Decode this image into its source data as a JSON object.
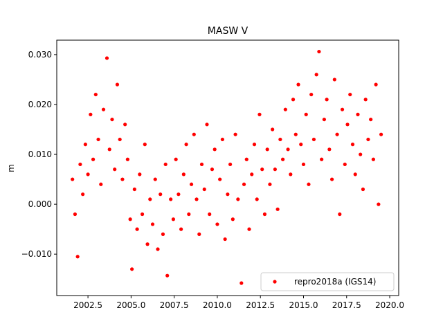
{
  "chart_data": {
    "type": "scatter",
    "title": "MASW V",
    "ylabel": "m",
    "xlim": [
      2000.69,
      2020.52
    ],
    "ylim": [
      -0.0183,
      0.0329
    ],
    "xticks": [
      2002.5,
      {
        "value": 2005,
        "label": "2005.0"
      },
      2007.5,
      {
        "value": 2010,
        "label": "2010.0"
      },
      2012.5,
      {
        "value": 2015,
        "label": "2015.0"
      },
      2017.5,
      {
        "value": 2020,
        "label": "2020.0"
      }
    ],
    "yticks": [
      {
        "value": -0.01,
        "label": "−0.010"
      },
      {
        "value": 0,
        "label": "0.000"
      },
      {
        "value": 0.01,
        "label": "0.010"
      },
      {
        "value": 0.02,
        "label": "0.020"
      },
      {
        "value": 0.03,
        "label": "0.030"
      }
    ],
    "legend_loc": "lower right",
    "series": [
      {
        "name": "repro2018a (IGS14)",
        "color": "#ff0000",
        "x": [
          2001.6,
          2001.75,
          2001.9,
          2002.05,
          2002.2,
          2002.35,
          2002.5,
          2002.65,
          2002.8,
          2002.95,
          2003.1,
          2003.25,
          2003.4,
          2003.6,
          2003.75,
          2003.9,
          2004.05,
          2004.2,
          2004.35,
          2004.5,
          2004.65,
          2004.8,
          2004.95,
          2005.05,
          2005.2,
          2005.35,
          2005.5,
          2005.65,
          2005.8,
          2005.95,
          2006.1,
          2006.25,
          2006.4,
          2006.55,
          2006.7,
          2006.85,
          2007.0,
          2007.1,
          2007.3,
          2007.45,
          2007.6,
          2007.75,
          2007.9,
          2008.05,
          2008.2,
          2008.35,
          2008.5,
          2008.65,
          2008.8,
          2008.95,
          2009.1,
          2009.25,
          2009.4,
          2009.55,
          2009.7,
          2009.85,
          2010.0,
          2010.15,
          2010.3,
          2010.45,
          2010.6,
          2010.75,
          2010.9,
          2011.05,
          2011.2,
          2011.4,
          2011.55,
          2011.7,
          2011.85,
          2012.0,
          2012.15,
          2012.3,
          2012.45,
          2012.6,
          2012.75,
          2012.9,
          2013.05,
          2013.2,
          2013.35,
          2013.5,
          2013.65,
          2013.8,
          2013.95,
          2014.1,
          2014.25,
          2014.4,
          2014.55,
          2014.7,
          2014.85,
          2015.0,
          2015.15,
          2015.3,
          2015.45,
          2015.6,
          2015.75,
          2015.9,
          2016.05,
          2016.2,
          2016.35,
          2016.5,
          2016.65,
          2016.8,
          2016.95,
          2017.1,
          2017.25,
          2017.4,
          2017.55,
          2017.7,
          2017.85,
          2018.0,
          2018.15,
          2018.3,
          2018.45,
          2018.6,
          2018.75,
          2018.9,
          2019.05,
          2019.2,
          2019.35,
          2019.5
        ],
        "values": [
          0.005,
          -0.002,
          -0.0105,
          0.008,
          0.002,
          0.012,
          0.006,
          0.018,
          0.009,
          0.022,
          0.013,
          0.004,
          0.019,
          0.0293,
          0.011,
          0.017,
          0.007,
          0.024,
          0.013,
          0.005,
          0.016,
          0.009,
          -0.003,
          -0.013,
          0.003,
          -0.005,
          0.006,
          -0.002,
          0.012,
          -0.008,
          0.001,
          -0.004,
          0.005,
          -0.009,
          0.002,
          -0.006,
          0.008,
          -0.0143,
          0.001,
          -0.003,
          0.009,
          0.002,
          -0.005,
          0.006,
          0.012,
          -0.002,
          0.004,
          0.014,
          0.001,
          -0.006,
          0.008,
          0.003,
          0.016,
          -0.002,
          0.007,
          0.011,
          -0.004,
          0.005,
          0.013,
          -0.007,
          0.002,
          0.008,
          -0.003,
          0.014,
          0.001,
          -0.0158,
          0.004,
          0.009,
          -0.005,
          0.006,
          0.012,
          0.001,
          0.018,
          0.007,
          -0.002,
          0.011,
          0.004,
          0.015,
          0.007,
          -0.001,
          0.013,
          0.009,
          0.019,
          0.011,
          0.006,
          0.021,
          0.014,
          0.024,
          0.012,
          0.008,
          0.018,
          0.004,
          0.022,
          0.013,
          0.026,
          0.0306,
          0.009,
          0.017,
          0.021,
          0.011,
          0.005,
          0.025,
          0.014,
          -0.002,
          0.019,
          0.008,
          0.016,
          0.022,
          0.012,
          0.006,
          0.018,
          0.01,
          0.003,
          0.021,
          0.013,
          0.017,
          0.009,
          0.024,
          0.0,
          0.014
        ]
      }
    ]
  }
}
